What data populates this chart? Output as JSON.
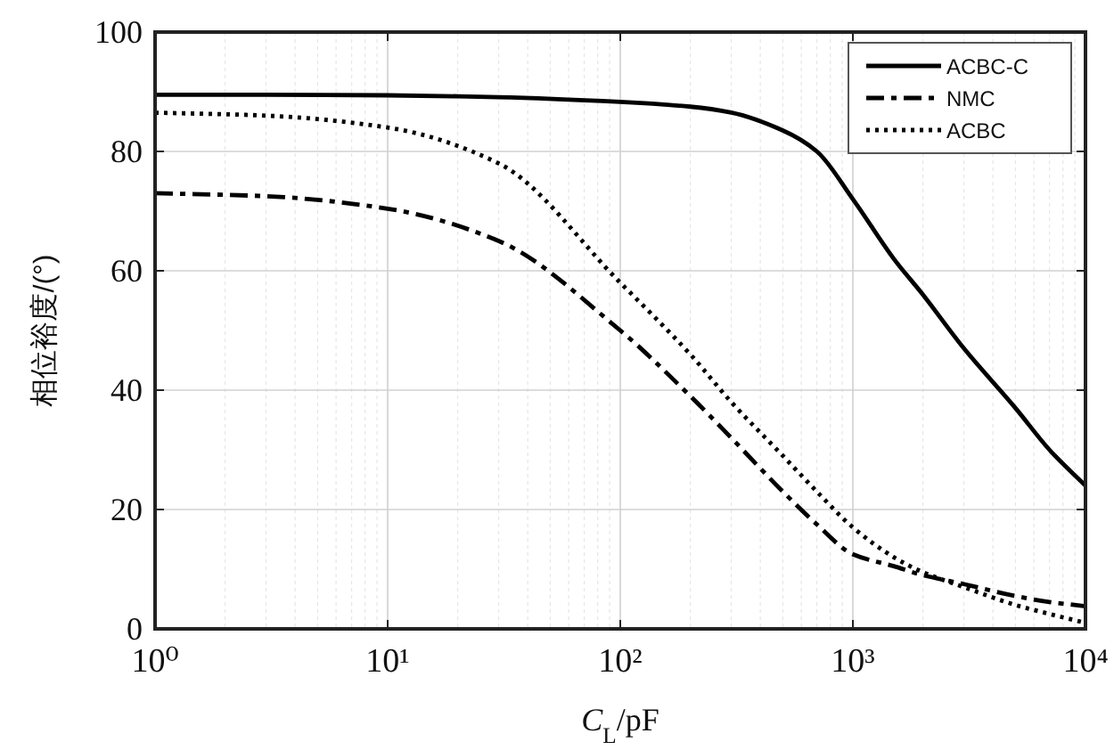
{
  "chart_data": {
    "type": "line",
    "xlabel": "C$_{L}$/pF",
    "ylabel": "相位裕度/(°)",
    "log": "x",
    "grid": true,
    "legend": "top right",
    "xlim": [
      1,
      10000
    ],
    "ylim": [
      0,
      100
    ],
    "xticks": [
      {
        "value": 1,
        "label": "10⁰"
      },
      {
        "value": 10,
        "label": "10¹"
      },
      {
        "value": 100,
        "label": "10²"
      },
      {
        "value": 1000,
        "label": "10³"
      },
      {
        "value": 10000,
        "label": "10⁴"
      }
    ],
    "yticks": [
      0,
      20,
      40,
      60,
      80,
      100
    ],
    "x": [
      1,
      3,
      10,
      30,
      100,
      200,
      300,
      500,
      700,
      1000,
      1500,
      2000,
      3000,
      5000,
      7000,
      10000
    ],
    "series": [
      {
        "name": "ACBC-C",
        "color": "#000000",
        "line_style": "solid",
        "values": [
          89.5,
          89.5,
          89.4,
          89.1,
          88.3,
          87.5,
          86.5,
          83.5,
          80,
          72,
          62,
          56,
          47,
          37,
          30,
          24
        ]
      },
      {
        "name": "NMC",
        "color": "#000000",
        "line_style": "dashdot",
        "values": [
          73,
          72.5,
          70.4,
          65,
          50,
          39,
          32,
          23,
          17.5,
          12.5,
          10.5,
          9,
          7.5,
          5.5,
          4.5,
          3.8
        ]
      },
      {
        "name": "ACBC",
        "color": "#000000",
        "line_style": "dotted",
        "values": [
          86.5,
          86,
          84,
          78,
          58,
          46,
          38,
          29,
          23,
          17,
          12,
          9.5,
          7,
          4,
          2.5,
          1
        ]
      }
    ]
  }
}
